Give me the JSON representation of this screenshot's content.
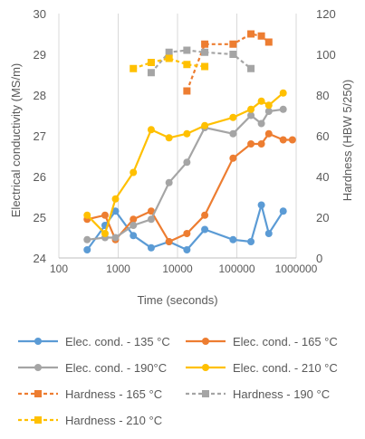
{
  "chart_data": {
    "type": "line",
    "xlabel": "Time (seconds)",
    "ylabel_left": "Electrical conductivity (MS/m)",
    "ylabel_right": "Hardness (HBW 5/250)",
    "x_scale": "log",
    "x_ticks": [
      100,
      1000,
      10000,
      100000,
      1000000
    ],
    "x_tick_labels": [
      "100",
      "1000",
      "10000",
      "100000",
      "1000000"
    ],
    "xlim": [
      100,
      1000000
    ],
    "ylim_left": [
      24,
      30
    ],
    "y_ticks_left": [
      24,
      25,
      26,
      27,
      28,
      29,
      30
    ],
    "ylim_right": [
      0,
      120
    ],
    "y_ticks_right": [
      0,
      20,
      40,
      60,
      80,
      100,
      120
    ],
    "grid": "vertical",
    "legend_position": "bottom",
    "series": [
      {
        "name": "Elec. cond. - 135 °C",
        "axis": "left",
        "style": "solid-circle",
        "color": "#5B9BD5",
        "x": [
          300,
          600,
          900,
          1800,
          3600,
          7200,
          14400,
          28800,
          86400,
          172800,
          259200,
          345600,
          604800
        ],
        "y": [
          24.2,
          24.8,
          25.15,
          24.55,
          24.25,
          24.4,
          24.2,
          24.7,
          24.45,
          24.4,
          25.3,
          24.6,
          25.15
        ]
      },
      {
        "name": "Elec. cond. - 165 °C",
        "axis": "left",
        "style": "solid-circle",
        "color": "#ED7D31",
        "x": [
          300,
          600,
          900,
          1800,
          3600,
          7200,
          14400,
          28800,
          86400,
          172800,
          259200,
          345600,
          604800,
          864000
        ],
        "y": [
          24.95,
          25.05,
          24.45,
          24.95,
          25.15,
          24.4,
          24.6,
          25.05,
          26.45,
          26.8,
          26.8,
          27.05,
          26.9,
          26.9
        ]
      },
      {
        "name": "Elec. cond. - 190°C",
        "axis": "left",
        "style": "solid-circle",
        "color": "#A5A5A5",
        "x": [
          300,
          600,
          900,
          1800,
          3600,
          7200,
          14400,
          28800,
          86400,
          172800,
          259200,
          345600,
          604800
        ],
        "y": [
          24.45,
          24.5,
          24.5,
          24.8,
          24.95,
          25.85,
          26.35,
          27.2,
          27.05,
          27.5,
          27.3,
          27.6,
          27.65
        ]
      },
      {
        "name": "Elec. cond. - 210 °C",
        "axis": "left",
        "style": "solid-circle",
        "color": "#FFC000",
        "x": [
          300,
          600,
          900,
          1800,
          3600,
          7200,
          14400,
          28800,
          86400,
          172800,
          259200,
          345600,
          604800
        ],
        "y": [
          25.05,
          24.6,
          25.45,
          26.1,
          27.15,
          26.95,
          27.05,
          27.25,
          27.45,
          27.65,
          27.85,
          27.75,
          28.05
        ]
      },
      {
        "name": "Hardness - 165 °C",
        "axis": "right",
        "style": "dashed-square",
        "color": "#ED7D31",
        "x": [
          14400,
          28800,
          86400,
          172800,
          259200,
          345600
        ],
        "y": [
          82,
          105,
          105,
          110,
          109,
          106
        ]
      },
      {
        "name": "Hardness - 190 °C",
        "axis": "right",
        "style": "dashed-square",
        "color": "#A5A5A5",
        "x": [
          3600,
          7200,
          14400,
          28800,
          86400,
          172800
        ],
        "y": [
          91,
          101,
          102,
          101,
          100,
          93
        ]
      },
      {
        "name": "Hardness - 210 °C",
        "axis": "right",
        "style": "dashed-square",
        "color": "#FFC000",
        "x": [
          1800,
          3600,
          7200,
          14400,
          28800
        ],
        "y": [
          93,
          96,
          98,
          95,
          94
        ]
      }
    ]
  }
}
